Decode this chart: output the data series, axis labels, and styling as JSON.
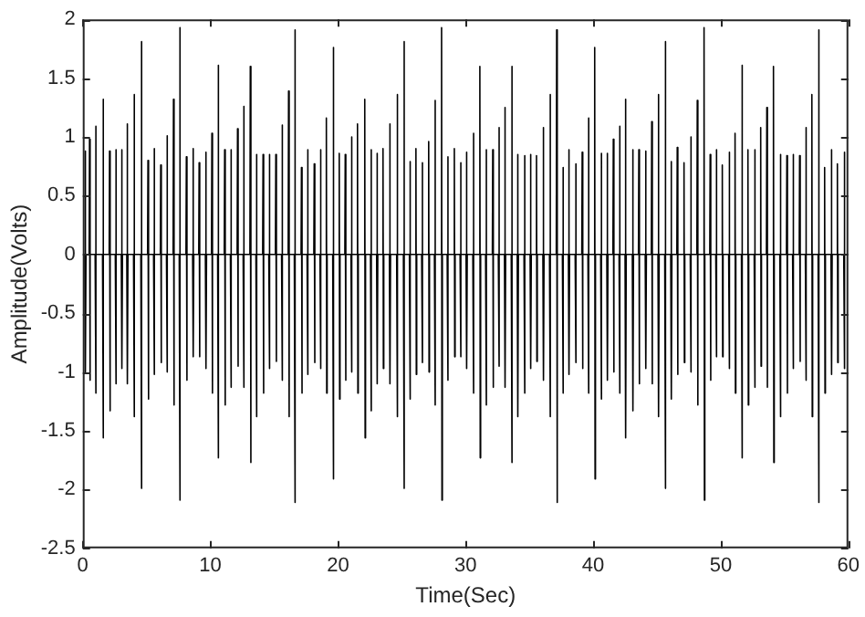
{
  "chart_data": {
    "type": "line",
    "xlabel": "Time(Sec)",
    "ylabel": "Amplitude(Volts)",
    "xlim": [
      0,
      60
    ],
    "xticks": [
      0,
      10,
      20,
      30,
      40,
      50,
      60
    ],
    "ylim": [
      -2.5,
      2
    ],
    "yticks": [
      -2.5,
      -2,
      -1.5,
      -1,
      -0.5,
      0,
      0.5,
      1,
      1.5,
      2
    ],
    "grid": false,
    "legend": false,
    "marker": "none",
    "line_style": "solid",
    "series": [
      {
        "color": "#000000",
        "x": [
          0.16,
          0.19,
          0.22,
          0.25,
          0.5,
          0.53,
          0.56,
          0.59,
          0.97,
          1.0,
          1.03,
          1.06,
          1.55,
          1.58,
          1.61,
          1.64,
          2.07,
          2.1,
          2.13,
          2.16,
          2.55,
          2.58,
          2.61,
          2.64,
          3.02,
          3.05,
          3.08,
          3.11,
          3.45,
          3.48,
          3.51,
          3.54,
          3.98,
          4.01,
          4.04,
          4.07,
          4.55,
          4.58,
          4.61,
          4.64,
          5.08,
          5.11,
          5.14,
          5.17,
          5.55,
          5.58,
          5.61,
          5.64,
          6.08,
          6.11,
          6.14,
          6.17,
          6.56,
          6.59,
          6.62,
          6.65,
          7.08,
          7.11,
          7.14,
          7.17,
          7.56,
          7.59,
          7.62,
          7.65,
          8.09,
          8.12,
          8.15,
          8.18,
          8.61,
          8.64,
          8.67,
          8.7,
          9.09,
          9.12,
          9.15,
          9.18,
          9.61,
          9.64,
          9.67,
          9.7,
          10.09,
          10.12,
          10.15,
          10.18,
          10.57,
          10.6,
          10.63,
          10.66,
          11.09,
          11.12,
          11.15,
          11.18,
          11.57,
          11.6,
          11.63,
          11.66,
          12.1,
          12.13,
          12.16,
          12.19,
          12.57,
          12.6,
          12.63,
          12.66,
          13.1,
          13.13,
          13.16,
          13.19,
          13.57,
          13.6,
          13.63,
          13.66,
          14.1,
          14.13,
          14.16,
          14.19,
          14.58,
          14.61,
          14.64,
          14.67,
          15.1,
          15.13,
          15.16,
          15.19,
          15.58,
          15.61,
          15.64,
          15.67,
          16.1,
          16.13,
          16.16,
          16.19,
          16.58,
          16.61,
          16.64,
          16.67,
          17.11,
          17.14,
          17.17,
          17.2,
          17.58,
          17.61,
          17.64,
          17.67,
          18.11,
          18.14,
          18.17,
          18.2,
          18.59,
          18.62,
          18.65,
          18.68,
          19.06,
          19.09,
          19.12,
          19.15,
          19.59,
          19.62,
          19.65,
          19.68,
          20.07,
          20.1,
          20.13,
          20.16,
          20.54,
          20.57,
          20.6,
          20.63,
          21.02,
          21.05,
          21.08,
          21.11,
          21.5,
          21.53,
          21.56,
          21.59,
          22.07,
          22.1,
          22.13,
          22.16,
          22.55,
          22.58,
          22.61,
          22.64,
          23.03,
          23.06,
          23.09,
          23.12,
          23.5,
          23.53,
          23.56,
          23.59,
          24.03,
          24.06,
          24.09,
          24.12,
          24.6,
          24.63,
          24.66,
          24.69,
          25.13,
          25.16,
          25.19,
          25.22,
          25.6,
          25.63,
          25.66,
          25.69,
          26.08,
          26.11,
          26.14,
          26.17,
          26.56,
          26.59,
          26.62,
          26.65,
          27.08,
          27.11,
          27.14,
          27.17,
          27.56,
          27.59,
          27.62,
          27.65,
          28.09,
          28.12,
          28.15,
          28.18,
          28.56,
          28.59,
          28.62,
          28.65,
          29.09,
          29.12,
          29.15,
          29.18,
          29.57,
          29.6,
          29.63,
          29.66,
          30.04,
          30.07,
          30.1,
          30.13,
          30.57,
          30.6,
          30.63,
          30.66,
          31.09,
          31.12,
          31.15,
          31.18,
          31.57,
          31.6,
          31.63,
          31.66,
          32.1,
          32.13,
          32.16,
          32.19,
          32.57,
          32.6,
          32.63,
          32.66,
          33.05,
          33.08,
          33.11,
          33.14,
          33.58,
          33.61,
          33.64,
          33.67,
          34.05,
          34.08,
          34.11,
          34.14,
          34.58,
          34.61,
          34.64,
          34.67,
          35.06,
          35.09,
          35.12,
          35.15,
          35.53,
          35.56,
          35.59,
          35.62,
          36.06,
          36.09,
          36.12,
          36.15,
          36.58,
          36.61,
          36.64,
          36.67,
          37.11,
          37.14,
          37.17,
          37.2,
          37.59,
          37.62,
          37.65,
          37.68,
          38.06,
          38.09,
          38.12,
          38.15,
          38.59,
          38.62,
          38.65,
          38.68,
          39.11,
          39.14,
          39.17,
          39.2,
          39.59,
          39.62,
          39.65,
          39.68,
          40.09,
          40.12,
          40.15,
          40.18,
          40.59,
          40.62,
          40.65,
          40.68,
          41.07,
          41.1,
          41.13,
          41.16,
          41.55,
          41.58,
          41.61,
          41.64,
          42.03,
          42.06,
          42.09,
          42.12,
          42.5,
          42.53,
          42.56,
          42.59,
          43.07,
          43.1,
          43.13,
          43.16,
          43.55,
          43.58,
          43.61,
          43.64,
          44.08,
          44.11,
          44.14,
          44.17,
          44.56,
          44.59,
          44.62,
          44.65,
          45.08,
          45.11,
          45.14,
          45.17,
          45.61,
          45.64,
          45.67,
          45.7,
          46.08,
          46.11,
          46.14,
          46.17,
          46.56,
          46.59,
          46.62,
          46.65,
          47.09,
          47.12,
          47.15,
          47.18,
          47.61,
          47.64,
          47.67,
          47.7,
          48.13,
          48.16,
          48.19,
          48.22,
          48.66,
          48.69,
          48.72,
          48.75,
          49.14,
          49.17,
          49.2,
          49.23,
          49.61,
          49.64,
          49.67,
          49.7,
          50.09,
          50.12,
          50.15,
          50.18,
          50.62,
          50.65,
          50.68,
          50.71,
          51.09,
          51.12,
          51.15,
          51.18,
          51.62,
          51.65,
          51.68,
          51.71,
          52.1,
          52.13,
          52.16,
          52.19,
          52.62,
          52.65,
          52.68,
          52.71,
          53.1,
          53.13,
          53.16,
          53.19,
          53.58,
          53.61,
          53.64,
          53.67,
          54.1,
          54.13,
          54.16,
          54.19,
          54.63,
          54.66,
          54.69,
          54.72,
          55.15,
          55.18,
          55.21,
          55.24,
          55.63,
          55.66,
          55.69,
          55.72,
          56.15,
          56.18,
          56.21,
          56.24,
          56.63,
          56.66,
          56.69,
          56.72,
          57.11,
          57.14,
          57.17,
          57.2,
          57.63,
          57.66,
          57.69,
          57.72,
          58.11,
          58.14,
          58.17,
          58.2,
          58.64,
          58.67,
          58.7,
          58.73,
          59.11,
          59.14,
          59.17,
          59.2,
          59.64,
          59.67,
          59.7,
          59.73
        ],
        "values": [
          0,
          0.88,
          -1.0,
          0,
          0,
          0.98,
          -1.07,
          0,
          0,
          1.09,
          -1.18,
          0,
          0,
          1.32,
          -1.56,
          0,
          0,
          0.88,
          -1.33,
          0,
          0,
          0.89,
          -1.1,
          0,
          0,
          0.89,
          -0.97,
          0,
          0,
          1.11,
          -1.1,
          0,
          0,
          1.36,
          -1.38,
          0,
          0,
          1.81,
          -1.99,
          0,
          0,
          0.8,
          -1.23,
          0,
          0,
          0.9,
          -1.02,
          0,
          0,
          0.76,
          -0.92,
          0,
          0,
          1.01,
          -1.0,
          0,
          0,
          1.32,
          -1.28,
          0,
          0,
          1.93,
          -2.09,
          0,
          0,
          0.83,
          -1.07,
          0,
          0,
          0.9,
          -0.87,
          0,
          0,
          0.78,
          -0.87,
          0,
          0,
          0.87,
          -0.97,
          0,
          0,
          1.03,
          -1.18,
          0,
          0,
          1.61,
          -1.73,
          0,
          0,
          0.89,
          -1.28,
          0,
          0,
          0.89,
          -1.13,
          0,
          0,
          1.07,
          -0.95,
          0,
          0,
          1.26,
          -1.13,
          0,
          0,
          1.6,
          -1.77,
          0,
          0,
          0.85,
          -1.38,
          0,
          0,
          0.85,
          -1.18,
          0,
          0,
          0.85,
          -0.97,
          0,
          0,
          0.85,
          -0.91,
          0,
          0,
          1.1,
          -1.07,
          0,
          0,
          1.39,
          -1.38,
          0,
          0,
          1.91,
          -2.11,
          0,
          0,
          0.74,
          -1.18,
          0,
          0,
          0.89,
          -1.02,
          0,
          0,
          0.77,
          -0.92,
          0,
          0,
          0.89,
          -0.97,
          0,
          0,
          1.16,
          -1.18,
          0,
          0,
          1.76,
          -1.91,
          0,
          0,
          0.86,
          -1.23,
          0,
          0,
          0.85,
          -1.07,
          0,
          0,
          1.0,
          -1.0,
          0,
          0,
          1.11,
          -1.18,
          0,
          0,
          1.32,
          -1.56,
          0,
          0,
          0.89,
          -1.33,
          0,
          0,
          0.86,
          -1.1,
          0,
          0,
          0.9,
          -0.97,
          0,
          0,
          1.11,
          -1.1,
          0,
          0,
          1.36,
          -1.38,
          0,
          0,
          1.81,
          -1.99,
          0,
          0,
          0.79,
          -1.23,
          0,
          0,
          0.9,
          -1.02,
          0,
          0,
          0.78,
          -0.92,
          0,
          0,
          0.96,
          -1.0,
          0,
          0,
          1.31,
          -1.28,
          0,
          0,
          1.93,
          -2.09,
          0,
          0,
          0.83,
          -1.07,
          0,
          0,
          0.9,
          -0.87,
          0,
          0,
          0.78,
          -0.87,
          0,
          0,
          0.87,
          -0.97,
          0,
          0,
          1.03,
          -1.18,
          0,
          0,
          1.6,
          -1.73,
          0,
          0,
          0.89,
          -1.28,
          0,
          0,
          0.89,
          -1.13,
          0,
          0,
          1.08,
          -0.95,
          0,
          0,
          1.25,
          -1.13,
          0,
          0,
          1.6,
          -1.77,
          0,
          0,
          0.85,
          -1.38,
          0,
          0,
          0.84,
          -1.18,
          0,
          0,
          0.85,
          -0.97,
          0,
          0,
          0.84,
          -0.91,
          0,
          0,
          1.08,
          -1.07,
          0,
          0,
          1.36,
          -1.38,
          0,
          0,
          1.91,
          -2.11,
          0,
          0,
          0.74,
          -1.18,
          0,
          0,
          0.89,
          -1.02,
          0,
          0,
          0.77,
          -0.92,
          0,
          0,
          0.87,
          -0.97,
          0,
          0,
          1.16,
          -1.18,
          0,
          0,
          1.76,
          -1.91,
          0,
          0,
          0.86,
          -1.23,
          0,
          0,
          0.86,
          -1.07,
          0,
          0,
          0.98,
          -1.0,
          0,
          0,
          1.09,
          -1.18,
          0,
          0,
          1.32,
          -1.56,
          0,
          0,
          0.89,
          -1.33,
          0,
          0,
          0.89,
          -1.1,
          0,
          0,
          0.88,
          -0.97,
          0,
          0,
          1.13,
          -1.1,
          0,
          0,
          1.36,
          -1.38,
          0,
          0,
          1.81,
          -1.99,
          0,
          0,
          0.79,
          -1.23,
          0,
          0,
          0.91,
          -1.02,
          0,
          0,
          0.78,
          -0.92,
          0,
          0,
          1.0,
          -1.0,
          0,
          0,
          1.31,
          -1.28,
          0,
          0,
          1.93,
          -2.09,
          0,
          0,
          0.85,
          -1.07,
          0,
          0,
          0.89,
          -0.87,
          0,
          0,
          0.76,
          -0.87,
          0,
          0,
          0.87,
          -0.97,
          0,
          0,
          1.03,
          -1.18,
          0,
          0,
          1.61,
          -1.73,
          0,
          0,
          0.89,
          -1.28,
          0,
          0,
          0.89,
          -1.13,
          0,
          0,
          1.08,
          -0.95,
          0,
          0,
          1.25,
          -1.13,
          0,
          0,
          1.6,
          -1.77,
          0,
          0,
          0.85,
          -1.38,
          0,
          0,
          0.84,
          -1.18,
          0,
          0,
          0.85,
          -0.97,
          0,
          0,
          0.84,
          -0.91,
          0,
          0,
          1.08,
          -1.07,
          0,
          0,
          1.36,
          -1.38,
          0,
          0,
          1.91,
          -2.11,
          0,
          0,
          0.74,
          -1.18,
          0,
          0,
          0.89,
          -1.02,
          0,
          0,
          0.77,
          -0.92,
          0,
          0,
          0.87,
          -0.97,
          0
        ]
      }
    ]
  }
}
